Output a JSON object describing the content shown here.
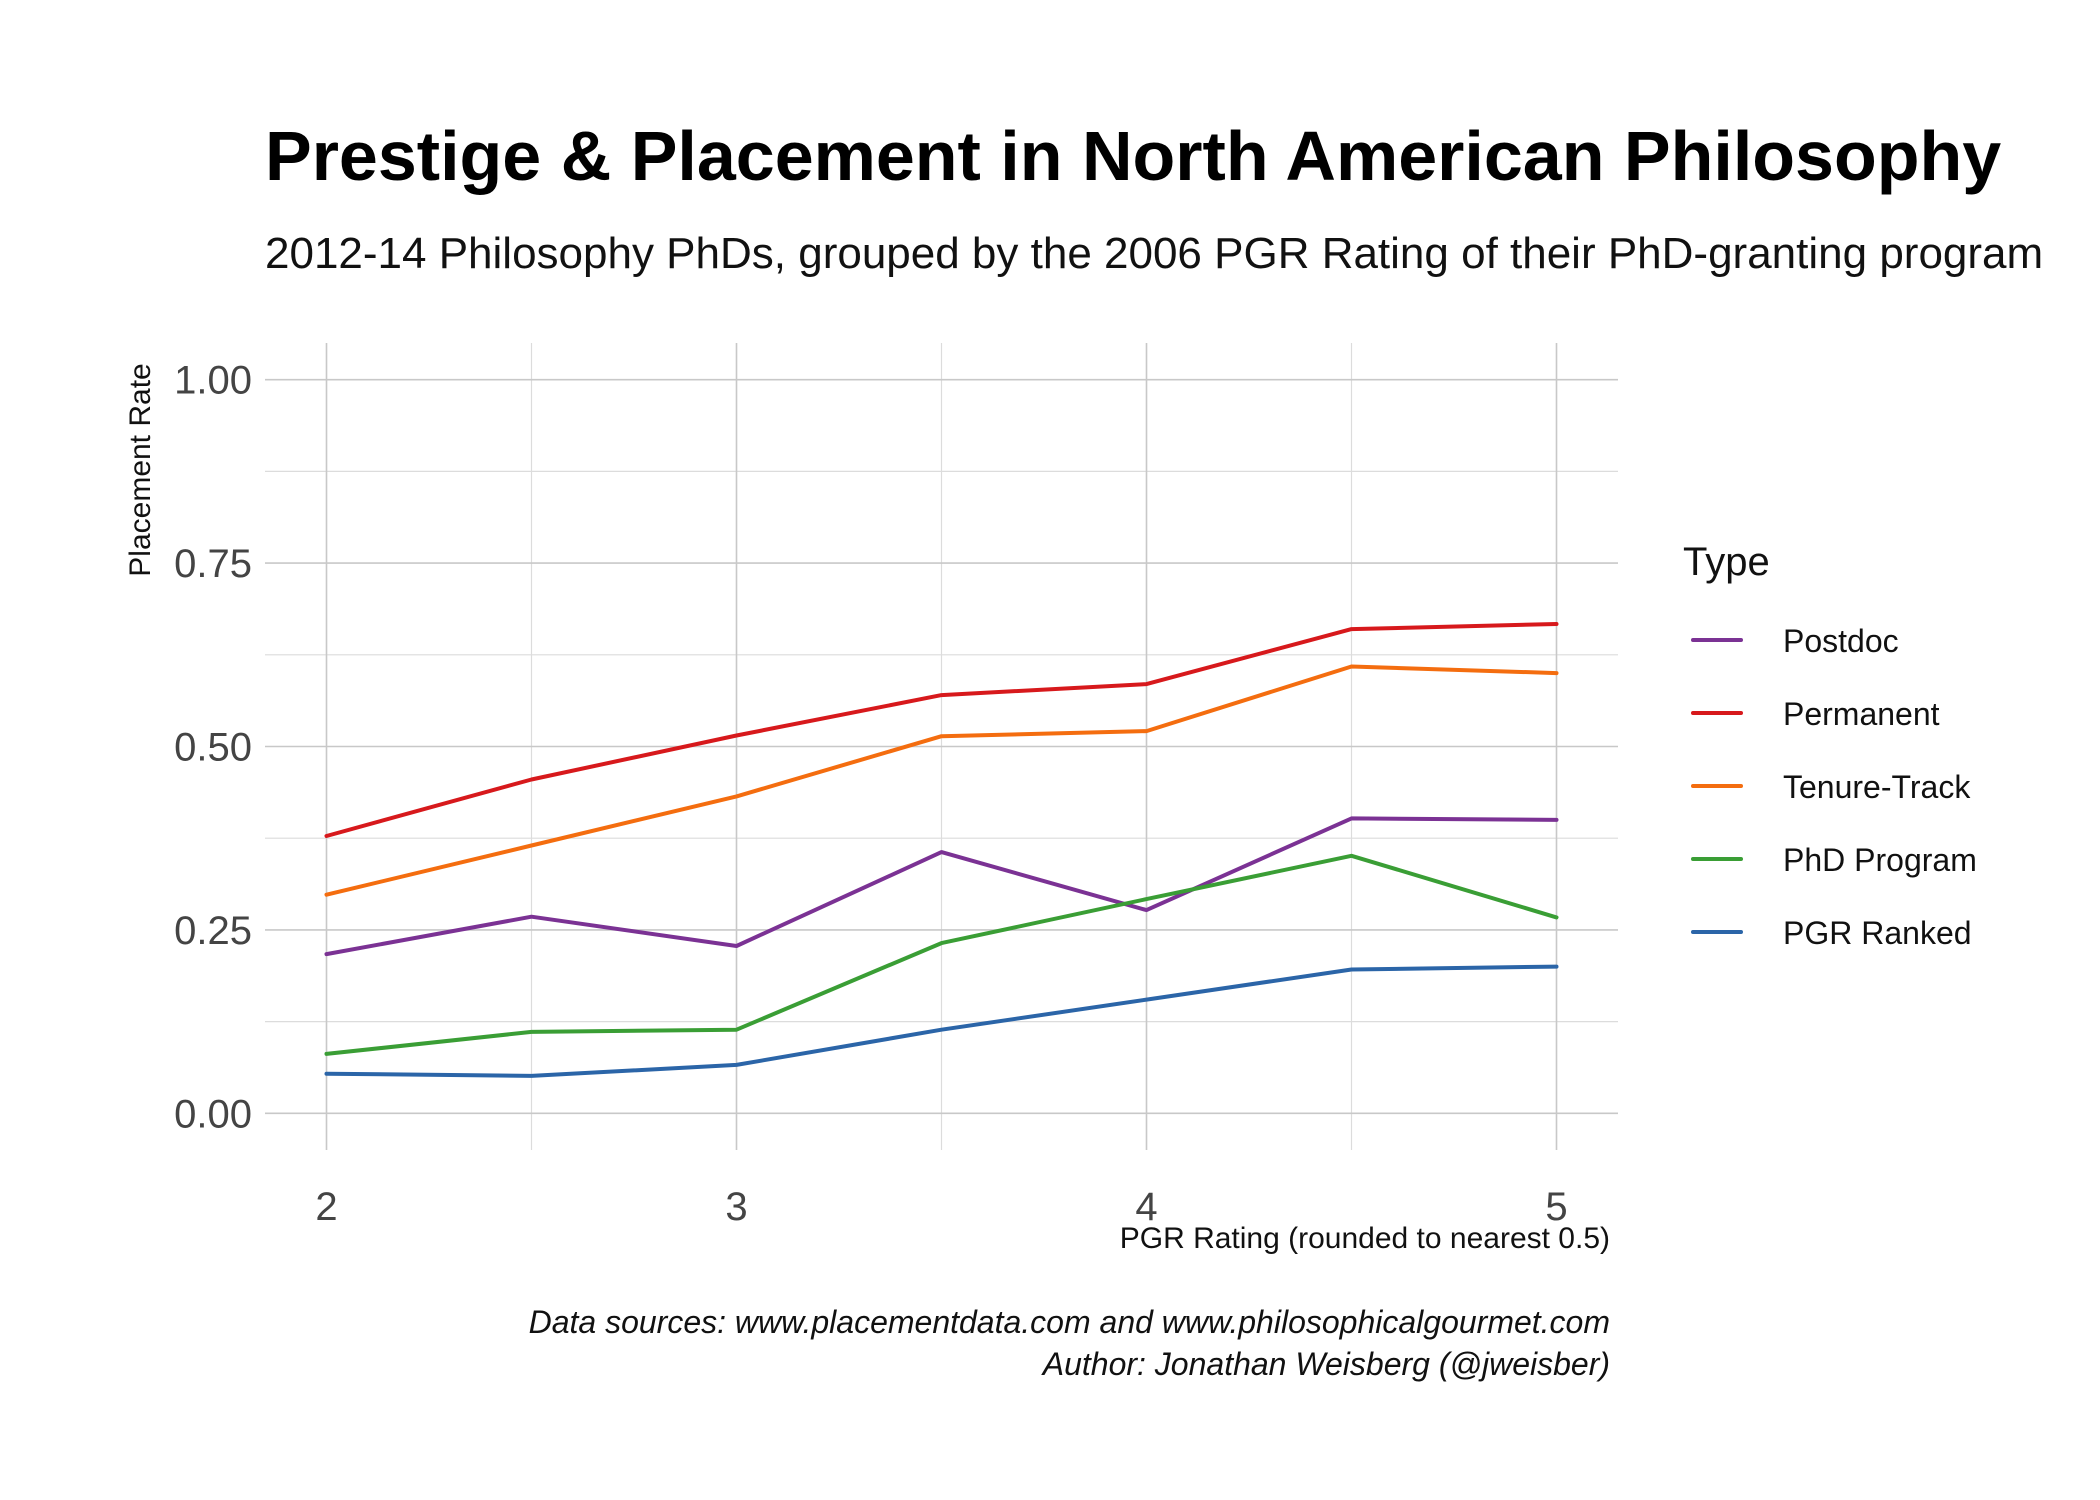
{
  "chart_data": {
    "type": "line",
    "title": "Prestige & Placement in North American Philosophy",
    "subtitle": "2012-14 Philosophy PhDs, grouped by the 2006 PGR Rating of their PhD-granting program",
    "xlabel": "PGR Rating (rounded to nearest 0.5)",
    "ylabel": "Placement Rate",
    "x": [
      2,
      2.5,
      3,
      3.5,
      4,
      4.5,
      5
    ],
    "xlim": [
      1.85,
      5.15
    ],
    "ylim": [
      -0.05,
      1.05
    ],
    "x_ticks": [
      2,
      3,
      4,
      5
    ],
    "x_tick_labels": [
      "2",
      "3",
      "4",
      "5"
    ],
    "y_ticks": [
      0,
      0.25,
      0.5,
      0.75,
      1.0
    ],
    "y_tick_labels": [
      "0.00",
      "0.25",
      "0.50",
      "0.75",
      "1.00"
    ],
    "grid": true,
    "legend_title": "Type",
    "legend_position": "right",
    "series": [
      {
        "name": "Postdoc",
        "color": "#7b3294",
        "values": [
          0.217,
          0.268,
          0.228,
          0.356,
          0.277,
          0.402,
          0.4
        ]
      },
      {
        "name": "Permanent",
        "color": "#d7191c",
        "values": [
          0.378,
          0.455,
          0.515,
          0.57,
          0.585,
          0.66,
          0.667
        ]
      },
      {
        "name": "Tenure-Track",
        "color": "#f46d0f",
        "values": [
          0.298,
          0.365,
          0.432,
          0.514,
          0.521,
          0.609,
          0.6
        ]
      },
      {
        "name": "PhD Program",
        "color": "#3a9e35",
        "values": [
          0.081,
          0.111,
          0.114,
          0.232,
          0.292,
          0.351,
          0.267
        ]
      },
      {
        "name": "PGR Ranked",
        "color": "#2b65a8",
        "values": [
          0.054,
          0.051,
          0.066,
          0.114,
          0.155,
          0.196,
          0.2
        ]
      }
    ],
    "caption": [
      "Data sources: www.placementdata.com and www.philosophicalgourmet.com",
      "Author: Jonathan Weisberg (@jweisber)"
    ]
  }
}
